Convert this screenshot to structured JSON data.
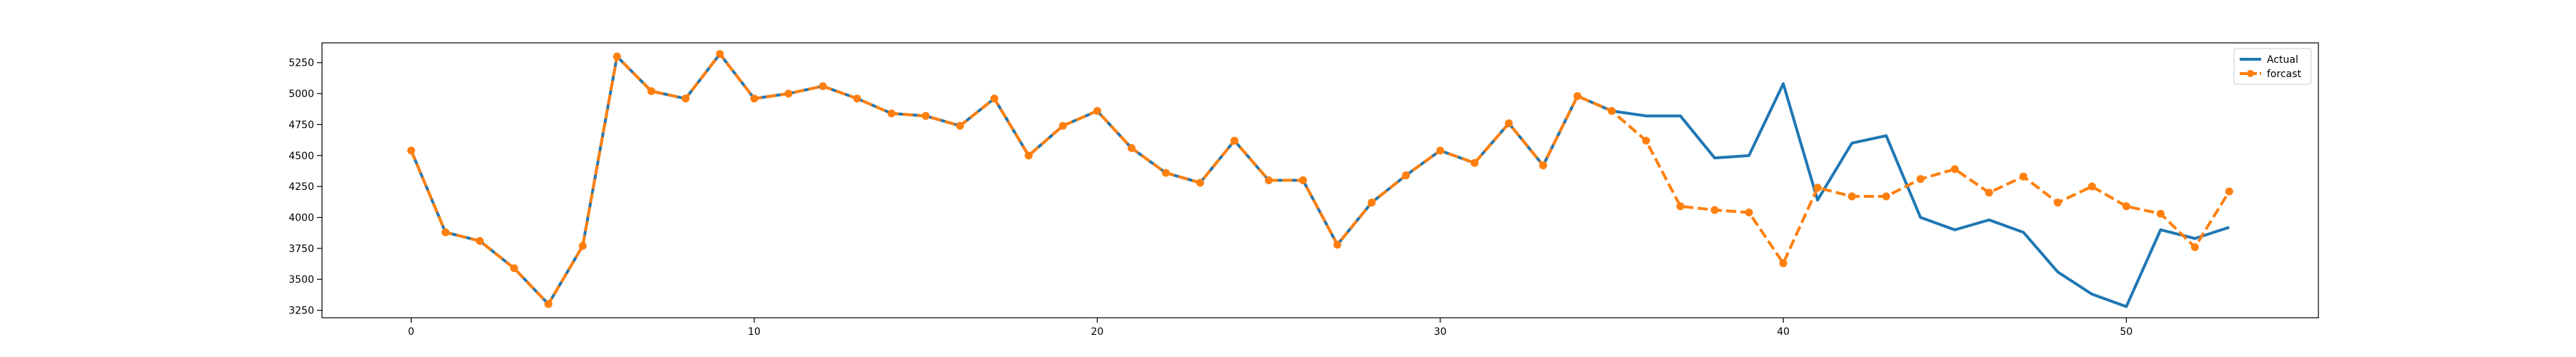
{
  "chart_data": {
    "type": "line",
    "title": "",
    "xlabel": "",
    "ylabel": "",
    "xlim": [
      -2.6,
      55.6
    ],
    "ylim": [
      3190,
      5410
    ],
    "xticks": [
      0,
      10,
      20,
      30,
      40,
      50
    ],
    "yticks": [
      3250,
      3500,
      3750,
      4000,
      4250,
      4500,
      4750,
      5000,
      5250
    ],
    "grid": false,
    "legend_position": "top-right",
    "x": [
      0,
      1,
      2,
      3,
      4,
      5,
      6,
      7,
      8,
      9,
      10,
      11,
      12,
      13,
      14,
      15,
      16,
      17,
      18,
      19,
      20,
      21,
      22,
      23,
      24,
      25,
      26,
      27,
      28,
      29,
      30,
      31,
      32,
      33,
      34,
      35,
      36,
      37,
      38,
      39,
      40,
      41,
      42,
      43,
      44,
      45,
      46,
      47,
      48,
      49,
      50,
      51,
      52,
      53
    ],
    "series": [
      {
        "name": "Actual",
        "color": "#1f77b4",
        "style": "solid",
        "marker": "none",
        "values": [
          4540,
          3880,
          3810,
          3590,
          3300,
          3770,
          5300,
          5020,
          4960,
          5320,
          4960,
          5000,
          5060,
          4960,
          4840,
          4820,
          4740,
          4960,
          4500,
          4740,
          4860,
          4560,
          4360,
          4280,
          4620,
          4300,
          4300,
          3780,
          4120,
          4340,
          4540,
          4440,
          4760,
          4420,
          4980,
          4860,
          4820,
          4820,
          4480,
          4500,
          5080,
          4140,
          4600,
          4660,
          4000,
          3900,
          3980,
          3880,
          3560,
          3380,
          3280,
          3900,
          3830,
          3920
        ]
      },
      {
        "name": "forcast",
        "color": "#ff7f0e",
        "style": "dashed",
        "marker": "circle",
        "values": [
          4540,
          3880,
          3810,
          3590,
          3300,
          3770,
          5300,
          5020,
          4960,
          5320,
          4960,
          5000,
          5060,
          4960,
          4840,
          4820,
          4740,
          4960,
          4500,
          4740,
          4860,
          4560,
          4360,
          4280,
          4620,
          4300,
          4300,
          3780,
          4120,
          4340,
          4540,
          4440,
          4760,
          4420,
          4980,
          4860,
          4620,
          4090,
          4060,
          4040,
          3630,
          4240,
          4170,
          4170,
          4310,
          4390,
          4200,
          4330,
          4120,
          4250,
          4090,
          4030,
          3760,
          4210
        ]
      }
    ]
  }
}
